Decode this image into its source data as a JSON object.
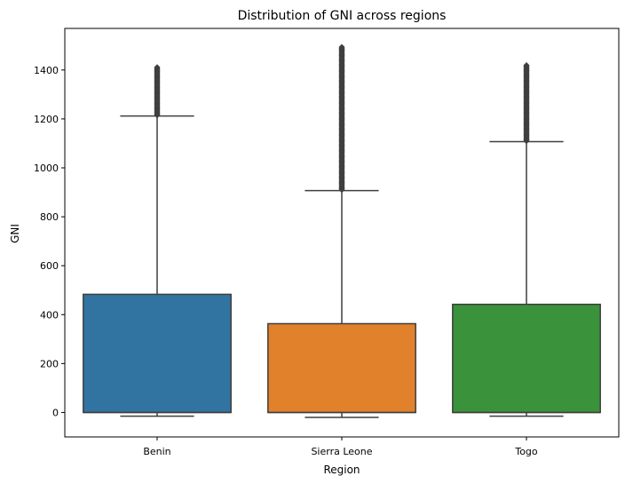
{
  "chart_data": {
    "type": "box",
    "title": "Distribution of GNI across regions",
    "xlabel": "Region",
    "ylabel": "GNI",
    "ylim": [
      -100,
      1570
    ],
    "yticks": [
      0,
      200,
      400,
      600,
      800,
      1000,
      1200,
      1400
    ],
    "grid": false,
    "categories": [
      "Benin",
      "Sierra Leone",
      "Togo"
    ],
    "colors": [
      "#3274a1",
      "#e1812c",
      "#3a923a"
    ],
    "boxes": [
      {
        "category": "Benin",
        "whisker_low": -15,
        "q1": 0,
        "median": 0,
        "q3": 483,
        "whisker_high": 1212,
        "outlier_min": 1215,
        "outlier_max": 1412
      },
      {
        "category": "Sierra Leone",
        "whisker_low": -20,
        "q1": 0,
        "median": 0,
        "q3": 363,
        "whisker_high": 907,
        "outlier_min": 910,
        "outlier_max": 1497
      },
      {
        "category": "Togo",
        "whisker_low": -15,
        "q1": 0,
        "median": 0,
        "q3": 442,
        "whisker_high": 1107,
        "outlier_min": 1110,
        "outlier_max": 1423
      }
    ]
  }
}
